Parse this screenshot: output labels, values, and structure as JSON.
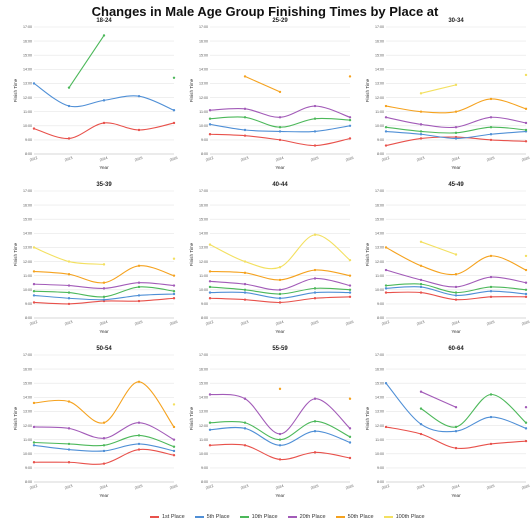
{
  "title": "Changes in Male Age Group Finishing Times by Place at",
  "legend": [
    {
      "label": "1st Place",
      "color": "#e8514b"
    },
    {
      "label": "5th Place",
      "color": "#4f8fd6"
    },
    {
      "label": "10th Place",
      "color": "#4cb85a"
    },
    {
      "label": "20th Place",
      "color": "#a25bb8"
    },
    {
      "label": "50th Place",
      "color": "#f5a21e"
    },
    {
      "label": "100th Place",
      "color": "#f3e060"
    }
  ],
  "chart_data": [
    {
      "type": "line",
      "title": "18-24",
      "xlabel": "Year",
      "ylabel": "Finish Time",
      "x": [
        "2012",
        "2013",
        "2014",
        "2015",
        "2016"
      ],
      "y_ticks": [
        "8:00",
        "9:00",
        "10:00",
        "11:00",
        "12:00",
        "13:00",
        "14:00",
        "15:00",
        "16:00",
        "17:00"
      ],
      "ylim": [
        8,
        17
      ],
      "series": [
        {
          "name": "1st Place",
          "values": [
            9.8,
            9.1,
            10.2,
            9.7,
            10.2
          ]
        },
        {
          "name": "5th Place",
          "values": [
            13.0,
            11.4,
            11.8,
            12.1,
            11.1
          ]
        },
        {
          "name": "10th Place",
          "values": [
            null,
            12.7,
            16.4,
            null,
            13.4
          ]
        },
        {
          "name": "20th Place",
          "values": [
            null,
            null,
            null,
            null,
            null
          ]
        },
        {
          "name": "50th Place",
          "values": [
            null,
            null,
            null,
            null,
            null
          ]
        },
        {
          "name": "100th Place",
          "values": [
            null,
            null,
            null,
            null,
            null
          ]
        }
      ]
    },
    {
      "type": "line",
      "title": "25-29",
      "xlabel": "Year",
      "ylabel": "Finish Time",
      "x": [
        "2012",
        "2013",
        "2014",
        "2015",
        "2016"
      ],
      "y_ticks": [
        "8:00",
        "9:00",
        "10:00",
        "11:00",
        "12:00",
        "13:00",
        "14:00",
        "15:00",
        "16:00",
        "17:00"
      ],
      "ylim": [
        8,
        17
      ],
      "series": [
        {
          "name": "1st Place",
          "values": [
            9.4,
            9.3,
            9.0,
            8.6,
            9.1
          ]
        },
        {
          "name": "5th Place",
          "values": [
            10.1,
            9.7,
            9.6,
            9.6,
            10.0
          ]
        },
        {
          "name": "10th Place",
          "values": [
            10.5,
            10.6,
            9.9,
            10.5,
            10.4
          ]
        },
        {
          "name": "20th Place",
          "values": [
            11.1,
            11.2,
            10.6,
            11.4,
            10.6
          ]
        },
        {
          "name": "50th Place",
          "values": [
            null,
            13.5,
            12.4,
            null,
            13.5
          ]
        },
        {
          "name": "100th Place",
          "values": [
            null,
            null,
            null,
            null,
            null
          ]
        }
      ]
    },
    {
      "type": "line",
      "title": "30-34",
      "xlabel": "Year",
      "ylabel": "Finish Time",
      "x": [
        "2012",
        "2013",
        "2014",
        "2015",
        "2016"
      ],
      "y_ticks": [
        "8:00",
        "9:00",
        "10:00",
        "11:00",
        "12:00",
        "13:00",
        "14:00",
        "15:00",
        "16:00",
        "17:00"
      ],
      "ylim": [
        8,
        17
      ],
      "series": [
        {
          "name": "1st Place",
          "values": [
            8.6,
            9.1,
            9.2,
            9.0,
            8.9
          ]
        },
        {
          "name": "5th Place",
          "values": [
            9.6,
            9.4,
            9.1,
            9.4,
            9.6
          ]
        },
        {
          "name": "10th Place",
          "values": [
            9.9,
            9.6,
            9.5,
            9.9,
            9.7
          ]
        },
        {
          "name": "20th Place",
          "values": [
            10.6,
            10.1,
            9.9,
            10.6,
            10.2
          ]
        },
        {
          "name": "50th Place",
          "values": [
            11.4,
            11.0,
            11.0,
            11.9,
            11.2
          ]
        },
        {
          "name": "100th Place",
          "values": [
            null,
            12.3,
            12.9,
            null,
            13.6
          ]
        }
      ]
    },
    {
      "type": "line",
      "title": "35-39",
      "xlabel": "Year",
      "ylabel": "Finish Time",
      "x": [
        "2012",
        "2013",
        "2014",
        "2015",
        "2016"
      ],
      "y_ticks": [
        "8:00",
        "9:00",
        "10:00",
        "11:00",
        "12:00",
        "13:00",
        "14:00",
        "15:00",
        "16:00",
        "17:00"
      ],
      "ylim": [
        8,
        17
      ],
      "series": [
        {
          "name": "1st Place",
          "values": [
            9.1,
            9.0,
            9.2,
            9.2,
            9.4
          ]
        },
        {
          "name": "5th Place",
          "values": [
            9.6,
            9.4,
            9.3,
            9.6,
            9.7
          ]
        },
        {
          "name": "10th Place",
          "values": [
            9.9,
            9.8,
            9.5,
            10.2,
            9.9
          ]
        },
        {
          "name": "20th Place",
          "values": [
            10.4,
            10.3,
            10.1,
            10.5,
            10.3
          ]
        },
        {
          "name": "50th Place",
          "values": [
            11.3,
            11.1,
            10.5,
            11.7,
            11.0
          ]
        },
        {
          "name": "100th Place",
          "values": [
            13.0,
            12.0,
            11.8,
            null,
            12.2
          ]
        }
      ]
    },
    {
      "type": "line",
      "title": "40-44",
      "xlabel": "Year",
      "ylabel": "Finish Time",
      "x": [
        "2012",
        "2013",
        "2014",
        "2015",
        "2016"
      ],
      "y_ticks": [
        "8:00",
        "9:00",
        "10:00",
        "11:00",
        "12:00",
        "13:00",
        "14:00",
        "15:00",
        "16:00",
        "17:00"
      ],
      "ylim": [
        8,
        17
      ],
      "series": [
        {
          "name": "1st Place",
          "values": [
            9.4,
            9.3,
            9.1,
            9.4,
            9.5
          ]
        },
        {
          "name": "5th Place",
          "values": [
            9.8,
            9.8,
            9.4,
            9.8,
            9.8
          ]
        },
        {
          "name": "10th Place",
          "values": [
            10.2,
            10.0,
            9.7,
            10.1,
            10.0
          ]
        },
        {
          "name": "20th Place",
          "values": [
            10.6,
            10.4,
            10.0,
            10.8,
            10.3
          ]
        },
        {
          "name": "50th Place",
          "values": [
            11.3,
            11.2,
            10.7,
            11.4,
            11.0
          ]
        },
        {
          "name": "100th Place",
          "values": [
            13.2,
            12.0,
            11.6,
            13.9,
            12.1
          ]
        }
      ]
    },
    {
      "type": "line",
      "title": "45-49",
      "xlabel": "Year",
      "ylabel": "Finish Time",
      "x": [
        "2012",
        "2013",
        "2014",
        "2015",
        "2016"
      ],
      "y_ticks": [
        "8:00",
        "9:00",
        "10:00",
        "11:00",
        "12:00",
        "13:00",
        "14:00",
        "15:00",
        "16:00",
        "17:00"
      ],
      "ylim": [
        8,
        17
      ],
      "series": [
        {
          "name": "1st Place",
          "values": [
            9.8,
            9.8,
            9.3,
            9.5,
            9.5
          ]
        },
        {
          "name": "5th Place",
          "values": [
            10.1,
            10.2,
            9.6,
            9.9,
            9.7
          ]
        },
        {
          "name": "10th Place",
          "values": [
            10.3,
            10.4,
            9.8,
            10.2,
            10.0
          ]
        },
        {
          "name": "20th Place",
          "values": [
            11.4,
            10.7,
            10.2,
            10.9,
            10.5
          ]
        },
        {
          "name": "50th Place",
          "values": [
            13.0,
            11.7,
            11.1,
            12.4,
            11.4
          ]
        },
        {
          "name": "100th Place",
          "values": [
            null,
            13.4,
            12.5,
            null,
            12.4
          ]
        }
      ]
    },
    {
      "type": "line",
      "title": "50-54",
      "xlabel": "Year",
      "ylabel": "Finish Time",
      "x": [
        "2012",
        "2013",
        "2014",
        "2015",
        "2016"
      ],
      "y_ticks": [
        "8:00",
        "9:00",
        "10:00",
        "11:00",
        "12:00",
        "13:00",
        "14:00",
        "15:00",
        "16:00",
        "17:00"
      ],
      "ylim": [
        8,
        17
      ],
      "series": [
        {
          "name": "1st Place",
          "values": [
            9.4,
            9.4,
            9.3,
            10.3,
            9.9
          ]
        },
        {
          "name": "5th Place",
          "values": [
            10.6,
            10.3,
            10.2,
            10.7,
            10.2
          ]
        },
        {
          "name": "10th Place",
          "values": [
            10.8,
            10.7,
            10.6,
            11.3,
            10.5
          ]
        },
        {
          "name": "20th Place",
          "values": [
            11.9,
            11.8,
            11.1,
            12.2,
            11.0
          ]
        },
        {
          "name": "50th Place",
          "values": [
            13.6,
            13.7,
            12.2,
            15.1,
            11.9
          ]
        },
        {
          "name": "100th Place",
          "values": [
            null,
            null,
            null,
            null,
            13.5
          ]
        }
      ]
    },
    {
      "type": "line",
      "title": "55-59",
      "xlabel": "Year",
      "ylabel": "Finish Time",
      "x": [
        "2012",
        "2013",
        "2014",
        "2015",
        "2016"
      ],
      "y_ticks": [
        "8:00",
        "9:00",
        "10:00",
        "11:00",
        "12:00",
        "13:00",
        "14:00",
        "15:00",
        "16:00",
        "17:00"
      ],
      "ylim": [
        8,
        17
      ],
      "series": [
        {
          "name": "1st Place",
          "values": [
            10.6,
            10.6,
            9.6,
            10.1,
            9.7
          ]
        },
        {
          "name": "5th Place",
          "values": [
            11.7,
            11.8,
            10.6,
            11.6,
            10.8
          ]
        },
        {
          "name": "10th Place",
          "values": [
            12.2,
            12.2,
            11.0,
            12.3,
            11.2
          ]
        },
        {
          "name": "20th Place",
          "values": [
            14.2,
            13.9,
            11.4,
            13.9,
            11.8
          ]
        },
        {
          "name": "50th Place",
          "values": [
            null,
            null,
            14.6,
            null,
            13.9
          ]
        },
        {
          "name": "100th Place",
          "values": [
            null,
            null,
            null,
            null,
            null
          ]
        }
      ]
    },
    {
      "type": "line",
      "title": "60-64",
      "xlabel": "Year",
      "ylabel": "Finish Time",
      "x": [
        "2012",
        "2013",
        "2014",
        "2015",
        "2016"
      ],
      "y_ticks": [
        "8:00",
        "9:00",
        "10:00",
        "11:00",
        "12:00",
        "13:00",
        "14:00",
        "15:00",
        "16:00",
        "17:00"
      ],
      "ylim": [
        8,
        17
      ],
      "series": [
        {
          "name": "1st Place",
          "values": [
            11.9,
            11.4,
            10.4,
            10.7,
            10.9
          ]
        },
        {
          "name": "5th Place",
          "values": [
            15.0,
            12.1,
            11.6,
            12.6,
            11.8
          ]
        },
        {
          "name": "10th Place",
          "values": [
            null,
            13.2,
            11.9,
            14.2,
            12.2
          ]
        },
        {
          "name": "20th Place",
          "values": [
            null,
            14.4,
            13.3,
            null,
            13.3
          ]
        },
        {
          "name": "50th Place",
          "values": [
            null,
            null,
            null,
            null,
            null
          ]
        },
        {
          "name": "100th Place",
          "values": [
            null,
            null,
            null,
            null,
            null
          ]
        }
      ]
    }
  ]
}
